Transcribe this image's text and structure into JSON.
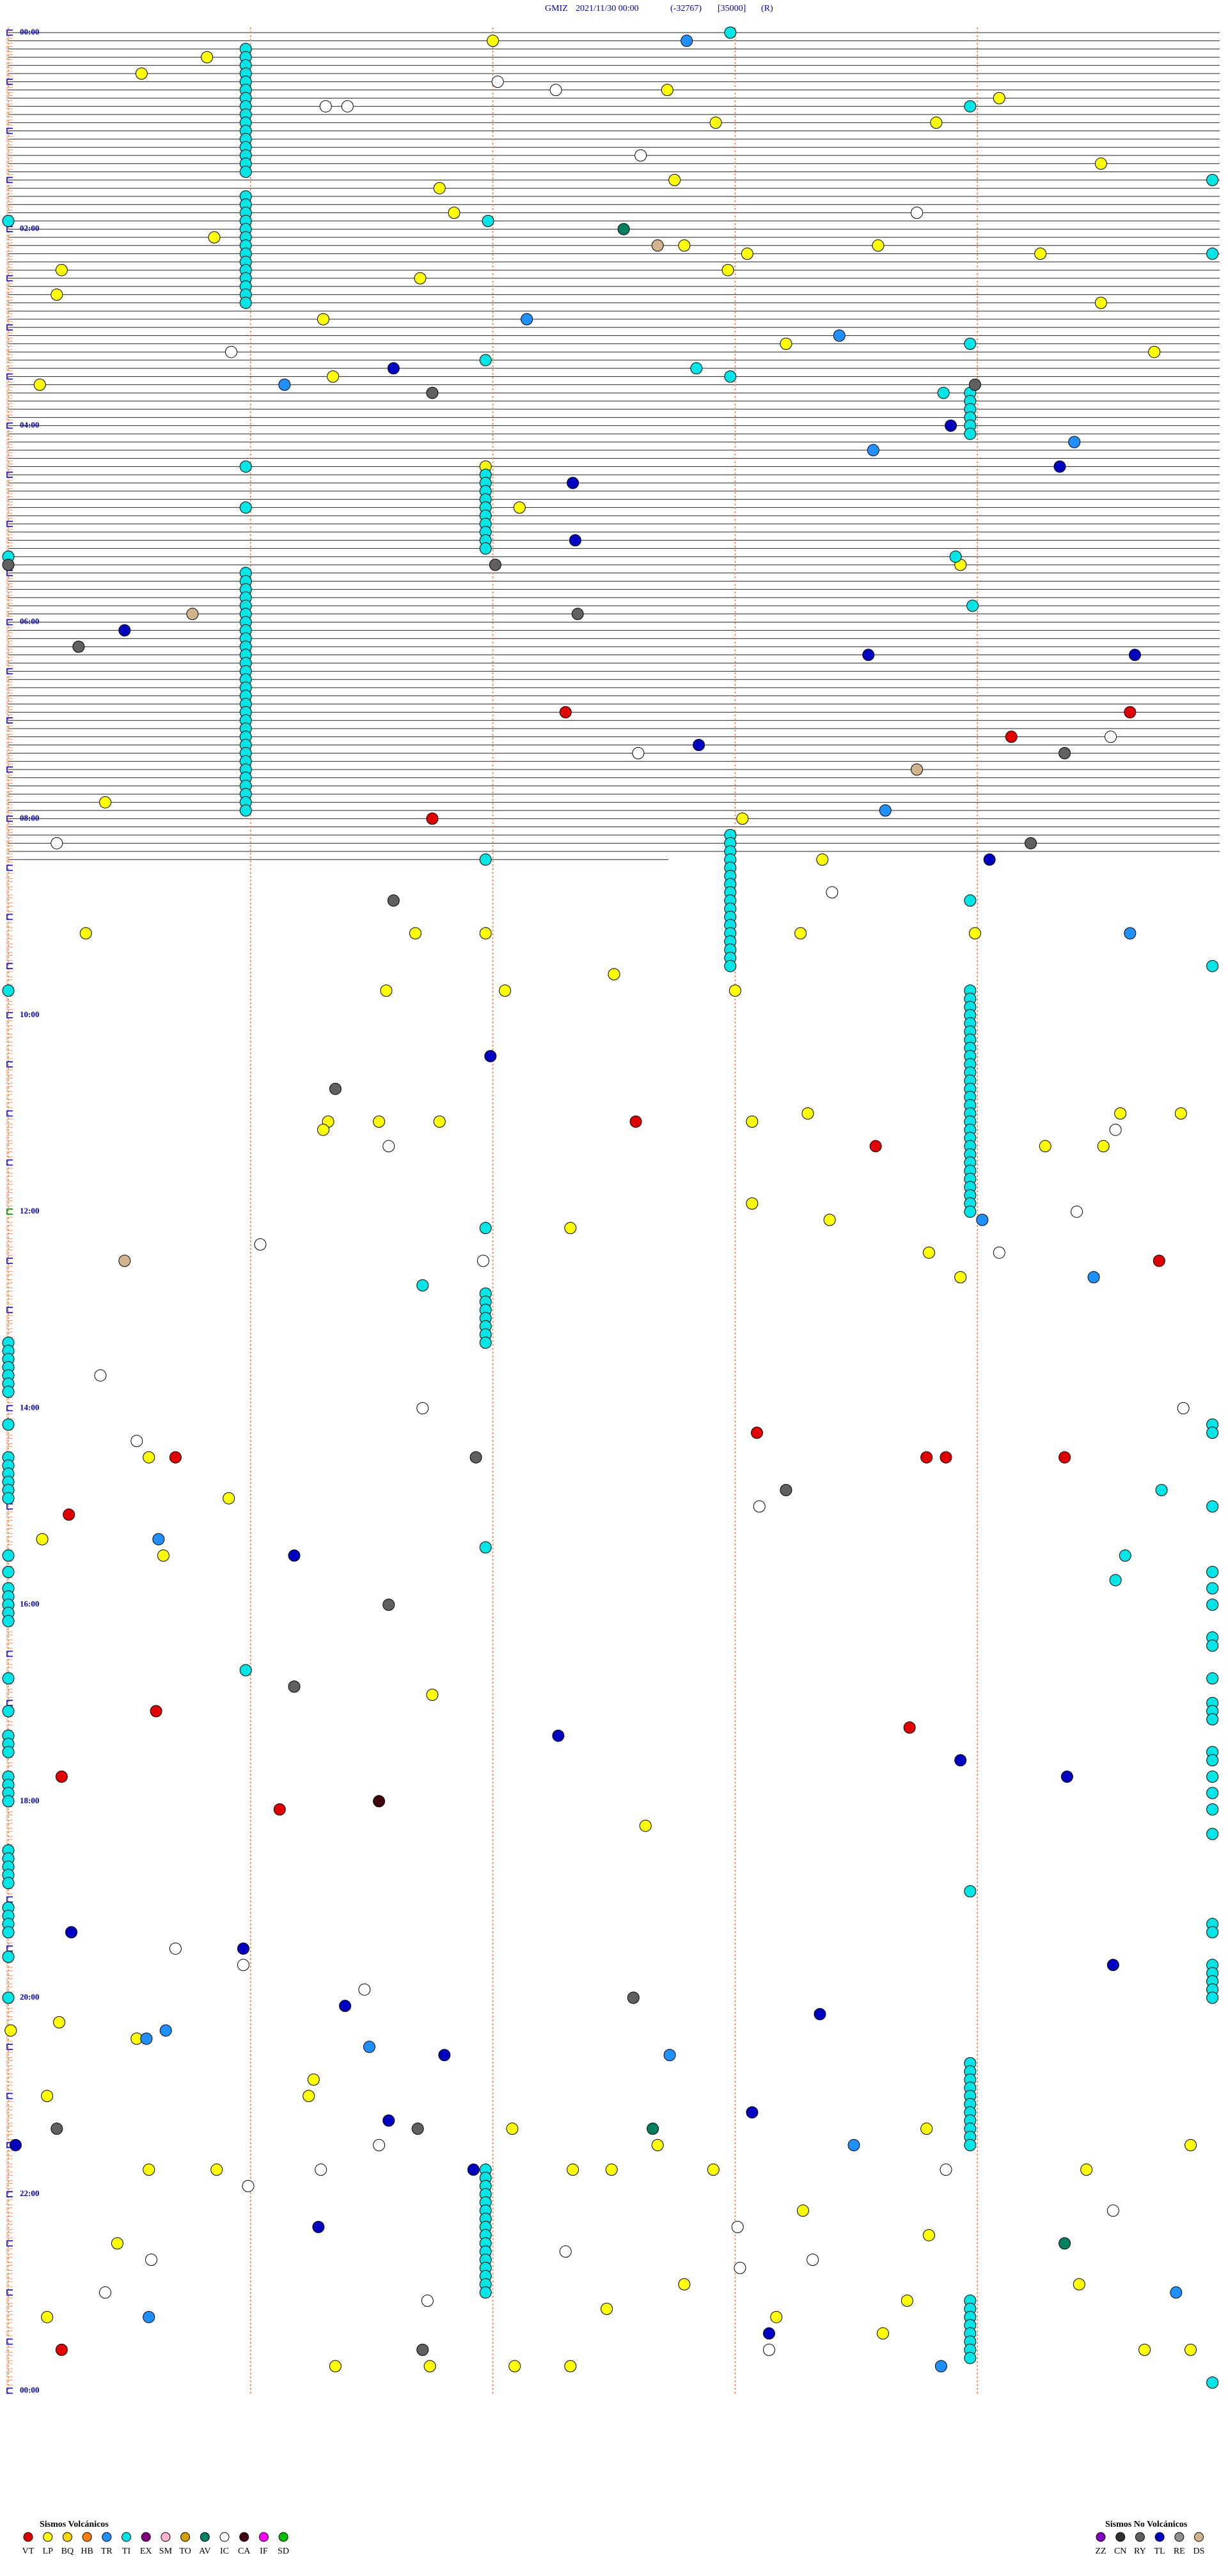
{
  "chart_data": {
    "type": "helicorder",
    "title": {
      "station": "GMIZ",
      "date": "2021/11/30 00:00",
      "code": "(-32767)",
      "scale": "[35000]",
      "flag": "(R)"
    },
    "time_labels": [
      "00:00",
      "02:00",
      "04:00",
      "06:00",
      "08:00",
      "10:00",
      "12:00",
      "14:00",
      "16:00",
      "18:00",
      "20:00",
      "22:00",
      "00:00"
    ],
    "legend": [
      {
        "title": "Sismos Volcánicos",
        "series": [
          {
            "name": "VT",
            "color": "#e00000",
            "values": [
              417.3,
              419.63,
              434.14,
              481.75,
              667.59,
              683.58,
              754.75,
              858.09,
              870.69,
              873.79,
              873.87,
              874.36,
              905.25,
              1025.61,
              1038.72,
              1065.22,
              1086.12,
              1415.22
            ]
          },
          {
            "name": "LP",
            "color": "#ffff00",
            "values": [
              7.0,
              15.82,
              25.55,
              37.72,
              44.09,
              57.92,
              58.83,
              84.51,
              92.75,
              96.78,
              111.84,
              125.85,
              132.79,
              133.59,
              138.05,
              139.26,
              145.22,
              147.97,
              151.7,
              160.2,
              169.51,
              176.3,
              193.21,
              199.73,
              211.34,
              215.13,
              266.97,
              292.11,
              328.93,
              470.4,
              483.03,
              508.36,
              550.32,
              551.68,
              551.97,
              553.27,
              553.99,
              577.5,
              586.56,
              587.05,
              588.0,
              663.3,
              664.59,
              664.84,
              666.32,
              666.53,
              666.78,
              668.07,
              671.3,
              684.28,
              684.52,
              718.07,
              728.39,
              732.32,
              748.8,
              763.93,
              870.58,
              895.91,
              920.14,
              930.64,
              1016.75,
              1097.63,
              1215.21,
              1220.01,
              1225.53,
              1251.26,
              1260.16,
              1261.24,
              1282.08,
              1283.79,
              1292.68,
              1294.88,
              1305.58,
              1305.86,
              1307.33,
              1307.49,
              1307.91,
              1309.45,
              1333.28,
              1348.8,
              1350.45,
              1377.79,
              1379.42,
              1388.71,
              1392.47,
              1395.16,
              1398.17,
              1408.61,
              1419.69,
              1419.88,
              1426.35,
              1426.74,
              1427.09,
              1427.32
            ]
          },
          {
            "name": "BQ",
            "color": "#ffd700",
            "values": []
          },
          {
            "name": "HB",
            "color": "#ff8000",
            "values": []
          },
          {
            "name": "TR",
            "color": "#1e90ff",
            "values": [
              7.8,
              177.14,
              188.43,
              216.14,
              254.4,
              258.57,
              478.62,
              554.63,
              729.02,
              764.48,
              920.62,
              1220.65,
              1225.57,
              1231.49,
              1237.73,
              1293.49,
              1384.82,
              1395.58,
              1428.85
            ]
          },
          {
            "name": "TI",
            "color": "#00e5e5",
            "values": [
              2.98,
              48.97,
              94.97,
              115.0,
              116.98,
              139.97,
              193.97,
              201.97,
              207.84,
              212.98,
              223.86,
              265.98,
              290.98,
              320.0,
              323.91,
              353.98,
              506.97,
              533.97,
              574.97,
              585.0,
              731.97,
              766.71,
              894.76,
              926.97,
              934.61,
              949.57,
              1000.98,
              1138.97,
              1439.97,
              10.98,
              15.98,
              20.98,
              25.98,
              30.98,
              35.98,
              40.98,
              45.98,
              50.98,
              55.98,
              60.98,
              65.98,
              70.98,
              75.98,
              80.98,
              85.98,
              100.98,
              105.98,
              110.98,
              115.98,
              120.98,
              125.98,
              130.98,
              135.98,
              140.98,
              145.98,
              150.98,
              155.98,
              160.98,
              165.98,
              330.98,
              335.98,
              340.98,
              345.98,
              350.98,
              355.98,
              360.98,
              365.98,
              370.98,
              375.98,
              380.98,
              385.98,
              390.98,
              395.98,
              400.98,
              405.98,
              410.98,
              415.98,
              420.98,
              425.98,
              430.98,
              435.98,
              440.98,
              445.98,
              450.98,
              455.98,
              460.98,
              465.98,
              470.98,
              475.98,
              271.97,
              276.97,
              281.97,
              286.97,
              291.97,
              296.97,
              301.97,
              306.97,
              311.97,
              316.97,
              771.97,
              776.97,
              781.97,
              786.97,
              791.97,
              796.97,
              801.97,
              1306.97,
              1311.97,
              1316.97,
              1321.97,
              1326.97,
              1331.97,
              1336.97,
              1341.97,
              1346.97,
              1351.97,
              1356.97,
              1361.97,
              1366.97,
              1371.97,
              1376.97,
              1381.97,
              492.98,
              497.98,
              502.98,
              507.98,
              512.98,
              517.98,
              522.98,
              527.98,
              532.98,
              537.98,
              542.98,
              547.98,
              552.98,
              557.98,
              562.98,
              567.98,
              572.98,
              223.97,
              228.97,
              233.97,
              238.97,
              243.97,
              248.97,
              588.97,
              593.97,
              598.97,
              603.97,
              608.97,
              613.97,
              618.97,
              623.97,
              628.97,
              633.97,
              638.97,
              643.97,
              648.97,
              653.97,
              658.97,
              663.97,
              668.97,
              673.97,
              678.97,
              683.97,
              688.97,
              693.97,
              698.97,
              703.97,
              708.97,
              713.97,
              718.97,
              723.97,
              1243.97,
              1248.97,
              1253.97,
              1258.97,
              1263.97,
              1268.97,
              1273.97,
              1278.97,
              1283.97,
              1288.97,
              1293.97,
              1388.97,
              1393.97,
              1398.97,
              1403.97,
              1408.97,
              1413.97,
              1418.97,
              1423.97,
              800,
              805,
              810,
              815,
              820,
              825,
              830,
              850,
              870,
              875,
              880,
              885,
              890,
              895,
              930,
              940,
              950,
              955,
              960,
              965,
              970,
              1005,
              1025,
              1040,
              1045,
              1050,
              1065,
              1070,
              1075,
              1080,
              1110,
              1115,
              1120,
              1125,
              1130,
              1145,
              1150,
              1155,
              1160,
              1175,
              1200,
              854.97,
              859.97,
              904.97,
              944.97,
              954.97,
              964.97,
              984.97,
              989.97,
              1009.97,
              1024.97,
              1029.97,
              1034.97,
              1054.97,
              1059.97,
              1069.97,
              1079.97,
              1089.97,
              1104.97,
              1159.97,
              1164.97,
              1184.97,
              1189.97,
              1194.97,
              1199.97,
              1204.97
            ]
          },
          {
            "name": "EX",
            "color": "#800080",
            "values": []
          },
          {
            "name": "SM",
            "color": "#ffb0d0",
            "values": []
          },
          {
            "name": "TO",
            "color": "#d0a000",
            "values": []
          },
          {
            "name": "AV",
            "color": "#008060",
            "values": [
              122.54,
              1282.66,
              1354.36
            ]
          },
          {
            "name": "IC",
            "color": "#ffffff",
            "values": [
              32.02,
              37.26,
              46.31,
              46.4,
              77.61,
              113.75,
              195.92,
              434.55,
              442.6,
              495.2,
              528.4,
              674.57,
              681.57,
              724.41,
              741.04,
              749.09,
              751.96,
              820.38,
              841.71,
              844.85,
              860.53,
              903.1,
              1170.69,
              1180.97,
              1196.47,
              1291.53,
              1306.29,
              1308.87,
              1315.99,
              1334.56,
              1343.01,
              1357.3,
              1360.59,
              1363.32,
              1368.02,
              1380.4,
              1386.73,
              1418.14
            ]
          },
          {
            "name": "CA",
            "color": "#400010",
            "values": [
              1081.53
            ]
          },
          {
            "name": "IF",
            "color": "#ff00ff",
            "values": []
          },
          {
            "name": "SD",
            "color": "#00c000",
            "values": []
          }
        ]
      },
      {
        "title": "Sismos No Volcánicos",
        "series": [
          {
            "name": "ZZ",
            "color": "#8000c0",
            "values": []
          },
          {
            "name": "CN",
            "color": "#303030",
            "values": []
          },
          {
            "name": "RY",
            "color": "#606060",
            "values": [
              218.99,
              221.75,
              325.0,
              327.01,
              357.35,
              375.29,
              444.36,
              499.22,
              531.59,
              646.35,
              871.93,
              893.21,
              961.57,
              1011.18,
              1202.58,
              1280.2,
              1281.69,
              1416.71
            ]
          },
          {
            "name": "TL",
            "color": "#0000c0",
            "values": [
              206.59,
              243.89,
              269.34,
              277.33,
              312.34,
              365.48,
              383.55,
              384.65,
              437.85,
              509.05,
              626.99,
              931.18,
              1042.27,
              1058.93,
              1069.37,
              1160.26,
              1170.97,
              1184.56,
              1206.39,
              1213.35,
              1236.8,
              1273.07,
              1276.57,
              1290.03,
              1306.92,
              1341.28,
              1408.14
            ]
          },
          {
            "name": "RE",
            "color": "#909090",
            "values": []
          },
          {
            "name": "DS",
            "color": "#d2b48c",
            "values": [
              132.68,
              355.76,
              453.75,
              750.48
            ]
          }
        ]
      }
    ]
  }
}
